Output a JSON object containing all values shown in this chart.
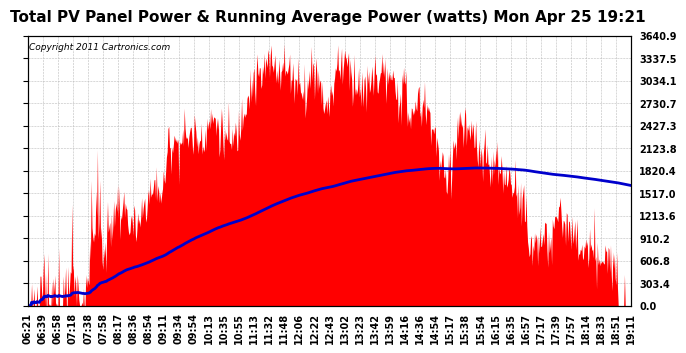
{
  "title": "Total PV Panel Power & Running Average Power (watts) Mon Apr 25 19:21",
  "copyright": "Copyright 2011 Cartronics.com",
  "background_color": "#ffffff",
  "plot_bg_color": "#ffffff",
  "grid_color": "#bbbbbb",
  "bar_color": "#ff0000",
  "line_color": "#0000cc",
  "ymax": 3640.9,
  "ymin": 0.0,
  "yticks": [
    0.0,
    303.4,
    606.8,
    910.2,
    1213.6,
    1517.0,
    1820.4,
    2123.8,
    2427.3,
    2730.7,
    3034.1,
    3337.5,
    3640.9
  ],
  "xtick_labels": [
    "06:21",
    "06:39",
    "06:58",
    "07:18",
    "07:38",
    "07:58",
    "08:17",
    "08:36",
    "08:54",
    "09:11",
    "09:34",
    "09:54",
    "10:13",
    "10:35",
    "10:55",
    "11:13",
    "11:32",
    "11:48",
    "12:06",
    "12:22",
    "12:43",
    "13:02",
    "13:23",
    "13:42",
    "13:59",
    "14:16",
    "14:36",
    "14:54",
    "15:17",
    "15:38",
    "15:54",
    "16:15",
    "16:35",
    "16:57",
    "17:17",
    "17:39",
    "17:57",
    "18:14",
    "18:33",
    "18:51",
    "19:11"
  ],
  "title_fontsize": 11,
  "tick_fontsize": 7,
  "copyright_fontsize": 6.5
}
